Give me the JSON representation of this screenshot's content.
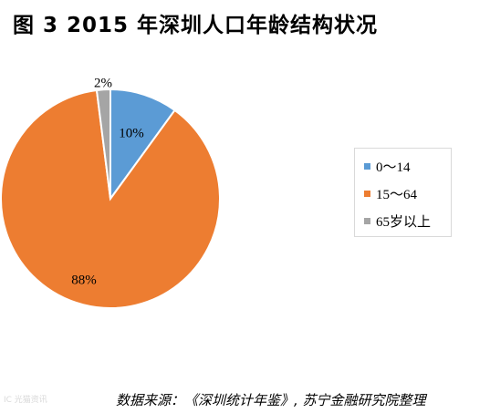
{
  "title": "图 3  2015 年深圳人口年龄结构状况",
  "source": "数据来源：《深圳统计年鉴》, 苏宁金融研究院整理",
  "watermark": "IC 光猫资讯",
  "chart_data": {
    "type": "pie",
    "categories": [
      "0～14",
      "15～64",
      "65岁以上"
    ],
    "values": [
      10,
      88,
      2
    ],
    "data_labels": [
      "10%",
      "88%",
      "2%"
    ],
    "colors": [
      "#5b9bd5",
      "#ed7d31",
      "#a5a5a5"
    ],
    "legend_position": "right"
  }
}
